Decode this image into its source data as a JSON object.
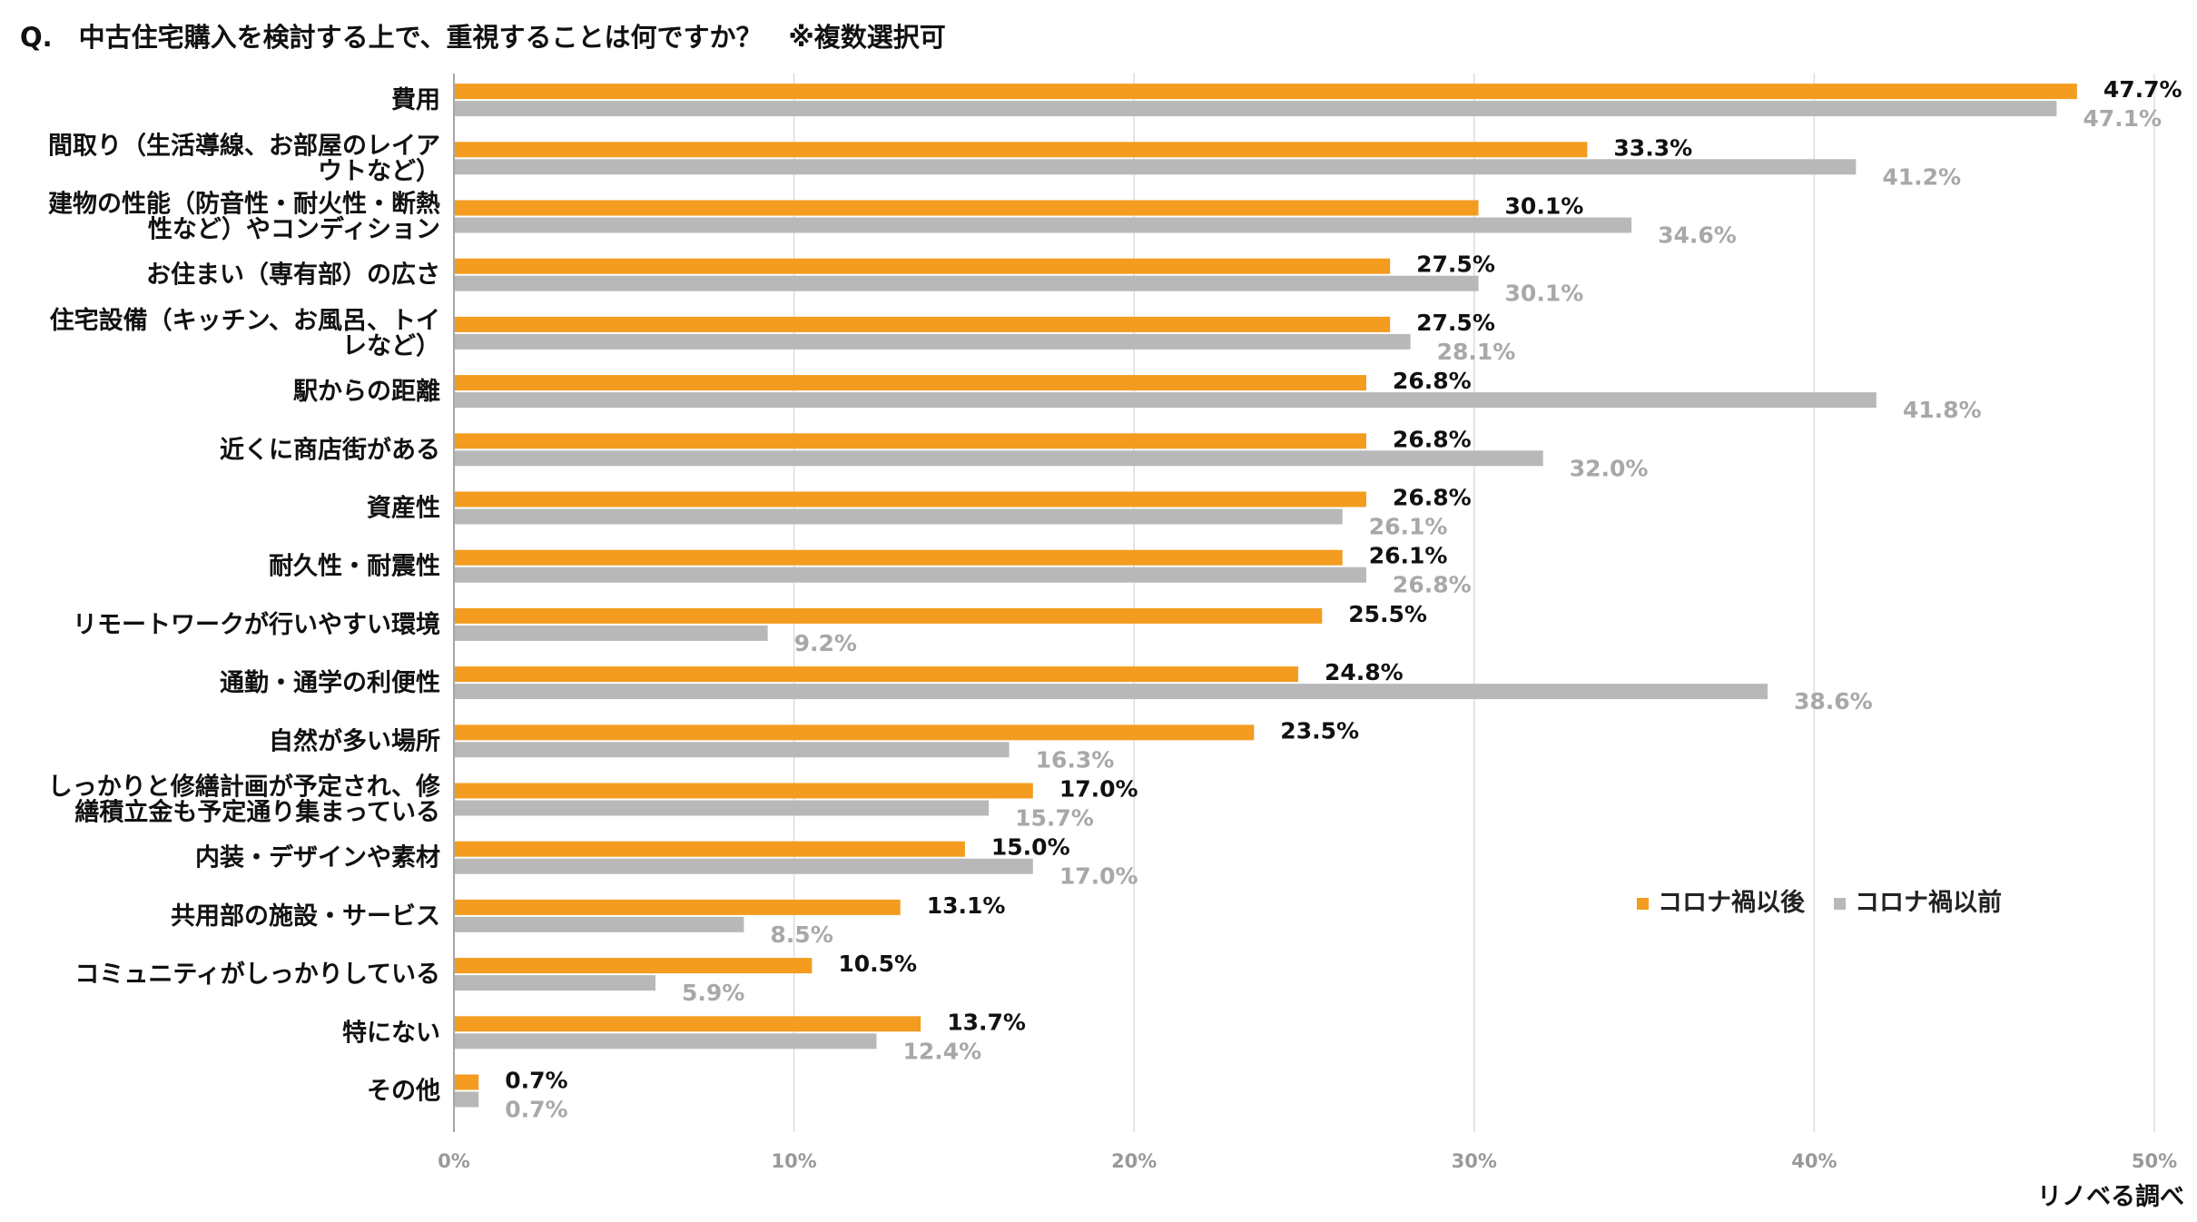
{
  "title": "Q.　中古住宅購入を検討する上で、重視することは何ですか？　※複数選択可",
  "source": "リノベる調べ",
  "colors": {
    "after": "#F39C1F",
    "before": "#B8B8B8",
    "after_label": "#111111",
    "before_label": "#A8A8A8",
    "grid": "#DDDDDD"
  },
  "chart_data": {
    "type": "bar",
    "orientation": "horizontal",
    "categories": [
      [
        "費用"
      ],
      [
        "間取り（生活導線、お部屋のレイア",
        "ウトなど）"
      ],
      [
        "建物の性能（防音性・耐火性・断熱",
        "性など）やコンディション"
      ],
      [
        "お住まい（専有部）の広さ"
      ],
      [
        "住宅設備（キッチン、お風呂、トイ",
        "レなど）"
      ],
      [
        "駅からの距離"
      ],
      [
        "近くに商店街がある"
      ],
      [
        "資産性"
      ],
      [
        "耐久性・耐震性"
      ],
      [
        "リモートワークが行いやすい環境"
      ],
      [
        "通勤・通学の利便性"
      ],
      [
        "自然が多い場所"
      ],
      [
        "しっかりと修繕計画が予定され、修",
        "繕積立金も予定通り集まっている"
      ],
      [
        "内装・デザインや素材"
      ],
      [
        "共用部の施設・サービス"
      ],
      [
        "コミュニティがしっかりしている"
      ],
      [
        "特にない"
      ],
      [
        "その他"
      ]
    ],
    "series": [
      {
        "name": "コロナ禍以後",
        "values": [
          47.7,
          33.3,
          30.1,
          27.5,
          27.5,
          26.8,
          26.8,
          26.8,
          26.1,
          25.5,
          24.8,
          23.5,
          17.0,
          15.0,
          13.1,
          10.5,
          13.7,
          0.7
        ]
      },
      {
        "name": "コロナ禍以前",
        "values": [
          47.1,
          41.2,
          34.6,
          30.1,
          28.1,
          41.8,
          32.0,
          26.1,
          26.8,
          9.2,
          38.6,
          16.3,
          15.7,
          17.0,
          8.5,
          5.9,
          12.4,
          0.7
        ]
      }
    ],
    "xlim": [
      0,
      50
    ],
    "xticks": [
      "0%",
      "10%",
      "20%",
      "30%",
      "40%",
      "50%"
    ],
    "value_suffix": "%",
    "grid": true,
    "legend_position": "right-middle"
  }
}
